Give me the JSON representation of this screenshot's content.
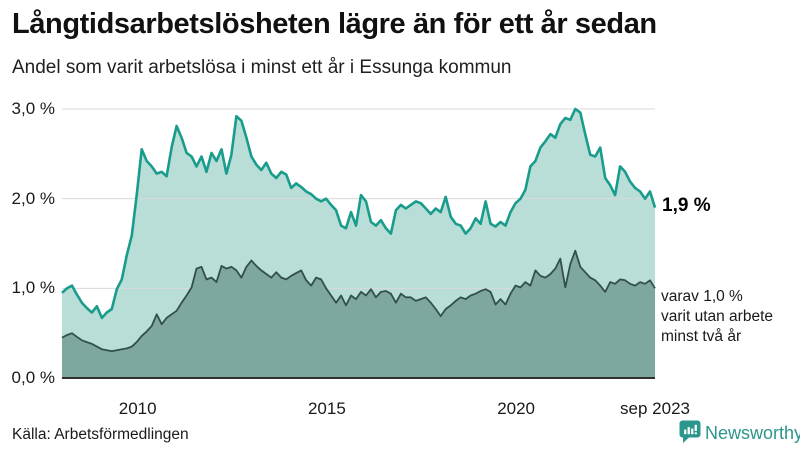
{
  "header": {
    "title": "Långtidsarbetslösheten lägre än för ett år sedan",
    "subtitle": "Andel som varit arbetslösa i minst ett år i Essunga kommun"
  },
  "chart_data": {
    "type": "area",
    "title": "Långtidsarbetslösheten lägre än för ett år sedan",
    "subtitle": "Andel som varit arbetslösa i minst ett år i Essunga kommun",
    "unit": "%",
    "ylim": [
      0,
      3.0
    ],
    "grid": true,
    "grid_color": "#dadada",
    "axis_color": "#303030",
    "x_start": 2008.0,
    "x_end": 2023.67,
    "y_ticks": [
      {
        "label": "3,0 %",
        "value": 3.0
      },
      {
        "label": "2,0 %",
        "value": 2.0
      },
      {
        "label": "1,0 %",
        "value": 1.0
      },
      {
        "label": "0,0 %",
        "value": 0.0
      }
    ],
    "x_ticks": [
      {
        "label": "2010",
        "year": 2010
      },
      {
        "label": "2015",
        "year": 2015
      },
      {
        "label": "2020",
        "year": 2020
      },
      {
        "label": "sep 2023",
        "year": 2023.67
      }
    ],
    "series": [
      {
        "name": "Arbetslösa minst ett år",
        "line": "#199c8c",
        "fill": "#b9ded7",
        "end_value": "1,9 %",
        "values": [
          0.95,
          1.0,
          1.03,
          0.93,
          0.84,
          0.78,
          0.73,
          0.8,
          0.67,
          0.73,
          0.77,
          0.99,
          1.1,
          1.37,
          1.59,
          2.04,
          2.55,
          2.42,
          2.36,
          2.28,
          2.3,
          2.25,
          2.57,
          2.81,
          2.68,
          2.51,
          2.47,
          2.36,
          2.47,
          2.3,
          2.51,
          2.42,
          2.55,
          2.28,
          2.49,
          2.92,
          2.87,
          2.68,
          2.47,
          2.38,
          2.32,
          2.4,
          2.28,
          2.23,
          2.3,
          2.27,
          2.12,
          2.17,
          2.13,
          2.08,
          2.05,
          2.0,
          1.97,
          2.0,
          1.93,
          1.87,
          1.7,
          1.67,
          1.85,
          1.7,
          2.04,
          1.97,
          1.74,
          1.7,
          1.76,
          1.67,
          1.61,
          1.87,
          1.93,
          1.89,
          1.93,
          1.97,
          1.95,
          1.89,
          1.83,
          1.89,
          1.85,
          2.02,
          1.8,
          1.72,
          1.7,
          1.61,
          1.67,
          1.78,
          1.72,
          1.97,
          1.72,
          1.69,
          1.74,
          1.7,
          1.85,
          1.95,
          2.0,
          2.1,
          2.36,
          2.42,
          2.57,
          2.64,
          2.72,
          2.68,
          2.83,
          2.9,
          2.88,
          3.0,
          2.96,
          2.72,
          2.49,
          2.47,
          2.57,
          2.23,
          2.15,
          2.04,
          2.36,
          2.3,
          2.19,
          2.12,
          2.08,
          2.0,
          2.08,
          1.9
        ]
      },
      {
        "name": "Utan arbete minst två år",
        "line": "#315049",
        "fill": "#7ea7a0",
        "end_value": "1,0 %",
        "values": [
          0.45,
          0.48,
          0.5,
          0.46,
          0.42,
          0.4,
          0.38,
          0.35,
          0.32,
          0.31,
          0.3,
          0.31,
          0.32,
          0.33,
          0.35,
          0.4,
          0.47,
          0.52,
          0.58,
          0.71,
          0.6,
          0.67,
          0.71,
          0.75,
          0.84,
          0.92,
          1.01,
          1.22,
          1.24,
          1.1,
          1.12,
          1.07,
          1.25,
          1.22,
          1.24,
          1.2,
          1.12,
          1.24,
          1.31,
          1.25,
          1.2,
          1.16,
          1.12,
          1.18,
          1.12,
          1.1,
          1.14,
          1.17,
          1.2,
          1.09,
          1.03,
          1.12,
          1.1,
          1.0,
          0.92,
          0.84,
          0.92,
          0.81,
          0.92,
          0.88,
          0.96,
          0.92,
          0.99,
          0.9,
          0.96,
          0.97,
          0.94,
          0.84,
          0.94,
          0.9,
          0.9,
          0.86,
          0.88,
          0.9,
          0.84,
          0.77,
          0.69,
          0.77,
          0.81,
          0.86,
          0.9,
          0.88,
          0.92,
          0.94,
          0.97,
          0.99,
          0.96,
          0.82,
          0.88,
          0.82,
          0.94,
          1.03,
          1.01,
          1.07,
          1.03,
          1.2,
          1.14,
          1.12,
          1.16,
          1.22,
          1.33,
          1.01,
          1.27,
          1.42,
          1.24,
          1.18,
          1.12,
          1.09,
          1.03,
          0.96,
          1.07,
          1.05,
          1.1,
          1.09,
          1.05,
          1.03,
          1.07,
          1.05,
          1.09,
          1.0
        ]
      }
    ],
    "end_labels": {
      "total": "1,9 %",
      "subset": [
        "varav 1,0 %",
        "varit utan arbete",
        "minst två år"
      ]
    }
  },
  "footer": {
    "source": "Källa: Arbetsförmedlingen",
    "brand": "Newsworthy",
    "brand_color": "#2b968b"
  }
}
